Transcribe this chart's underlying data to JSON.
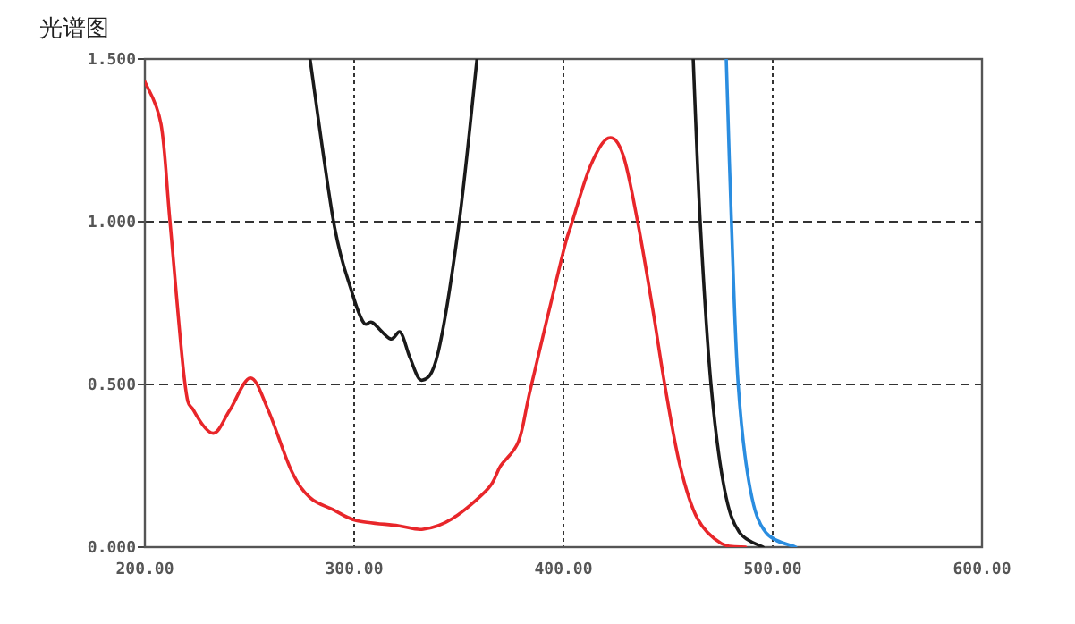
{
  "chart_data": {
    "type": "line",
    "title": "光谱图",
    "xlim": [
      200,
      600
    ],
    "ylim": [
      0,
      1.5
    ],
    "xticks": [
      {
        "value": 200,
        "label": "200.00"
      },
      {
        "value": 300,
        "label": "300.00"
      },
      {
        "value": 400,
        "label": "400.00"
      },
      {
        "value": 500,
        "label": "500.00"
      },
      {
        "value": 600,
        "label": "600.00"
      }
    ],
    "yticks": [
      {
        "value": 0,
        "label": "0.000"
      },
      {
        "value": 0.5,
        "label": "0.500"
      },
      {
        "value": 1.0,
        "label": "1.000"
      },
      {
        "value": 1.5,
        "label": "1.500"
      }
    ],
    "grid": true,
    "series": [
      {
        "color": "#e8262a",
        "x": [
          200,
          207.7,
          212,
          219,
          223.3,
          232.7,
          240.5,
          250.4,
          259,
          270,
          278.9,
          290,
          301,
          321,
          333,
          347,
          364,
          370,
          378.6,
          384.4,
          399.4,
          404,
          412.8,
          421.4,
          428.5,
          435.6,
          442.7,
          448.4,
          455.6,
          464,
          475.5,
          487
        ],
        "values": [
          1.43,
          1.3,
          1.0,
          0.51,
          0.42,
          0.35,
          0.42,
          0.52,
          0.42,
          0.235,
          0.152,
          0.115,
          0.082,
          0.066,
          0.055,
          0.088,
          0.18,
          0.25,
          0.326,
          0.49,
          0.894,
          0.995,
          1.17,
          1.257,
          1.205,
          0.995,
          0.73,
          0.5,
          0.253,
          0.088,
          0.011,
          0.0
        ]
      },
      {
        "color": "#1a1a1a",
        "x": [
          278.9,
          290.3,
          298.9,
          304.5,
          308.8,
          317.3,
          322.2,
          326.8,
          332.5,
          340.2,
          350.2,
          358.7
        ],
        "values": [
          1.5,
          0.995,
          0.784,
          0.69,
          0.69,
          0.64,
          0.66,
          0.58,
          0.513,
          0.6,
          1.0,
          1.5
        ]
      },
      {
        "color": "#1a1a1a",
        "x": [
          462,
          465.4,
          470.5,
          476.9,
          484,
          495.4
        ],
        "values": [
          1.5,
          0.995,
          0.5,
          0.18,
          0.046,
          0.0
        ]
      },
      {
        "color": "#2a8de0",
        "x": [
          477.8,
          480.3,
          483.5,
          489.2,
          496.8,
          511
        ],
        "values": [
          1.5,
          0.995,
          0.5,
          0.18,
          0.044,
          0.0
        ]
      }
    ]
  }
}
